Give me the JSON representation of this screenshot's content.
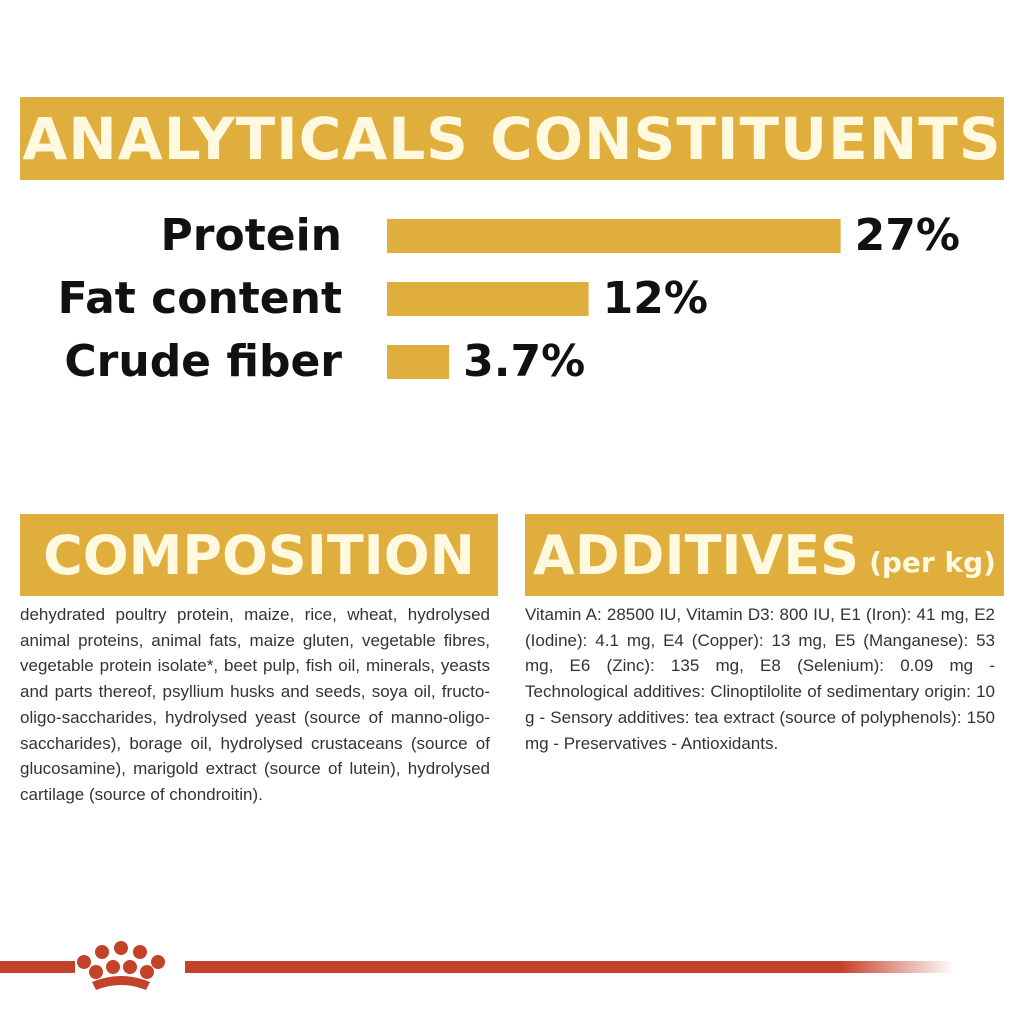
{
  "chart_data": {
    "type": "bar",
    "title": "ANALYTICALS CONSTITUENTS",
    "categories": [
      "Protein",
      "Fat content",
      "Crude fiber"
    ],
    "values": [
      27,
      12,
      3.7
    ],
    "value_labels": [
      "27%",
      "12%",
      "3.7%"
    ],
    "color": "#dfae3c"
  },
  "composition": {
    "title": "COMPOSITION",
    "text": "dehydrated poultry protein, maize, rice, wheat, hydrolysed animal proteins, animal fats, maize gluten, vegetable fibres, vegetable protein isolate*, beet pulp, fish oil, minerals, yeasts and parts thereof, psyllium husks and seeds, soya oil, fructo-oligo-saccharides, hydrolysed yeast (source of manno-oligo-saccharides), borage oil, hydrolysed crustaceans (source of glucosamine), marigold extract (source of lutein), hydrolysed cartilage (source of chondroitin)."
  },
  "additives": {
    "title": "ADDITIVES",
    "subtitle": "(per kg)",
    "text": "Vitamin A: 28500 IU, Vitamin D3: 800 IU, E1 (Iron): 41 mg, E2 (Iodine): 4.1 mg, E4 (Copper): 13 mg, E5 (Manganese): 53 mg, E6 (Zinc): 135 mg, E8 (Selenium): 0.09 mg - Technological additives: Clinoptilolite of sedimentary origin: 10 g - Sensory additives: tea extract (source of polyphenols): 150 mg - Preservatives - Antioxidants."
  }
}
